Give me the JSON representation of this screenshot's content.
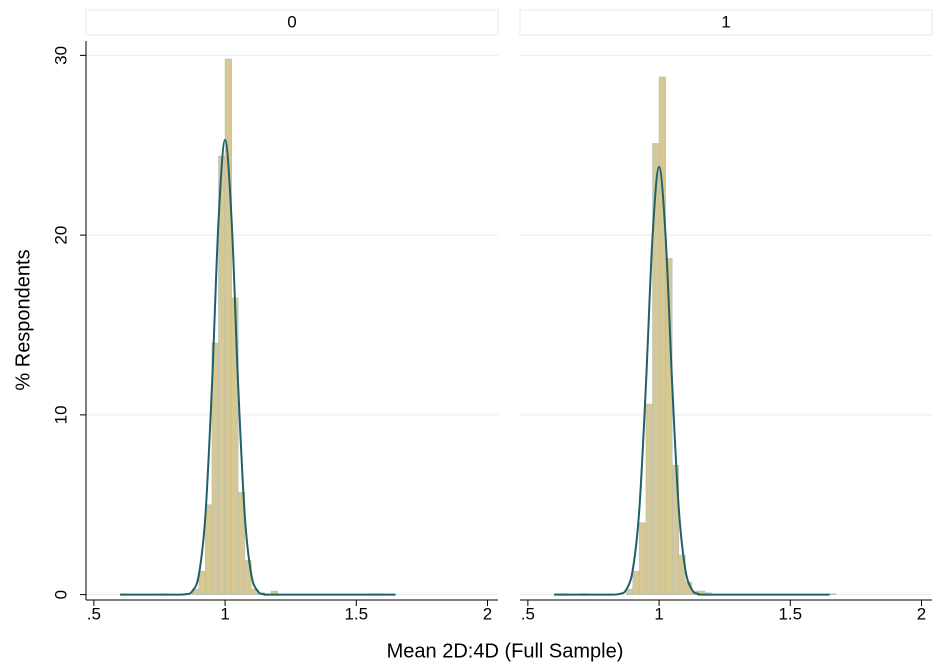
{
  "chart_data": [
    {
      "type": "histogram",
      "title": "0",
      "ylabel": "% Respondents",
      "xlabel": "Mean 2D:4D (Full Sample)",
      "bins": [
        0.6,
        0.625,
        0.65,
        0.675,
        0.7,
        0.725,
        0.75,
        0.775,
        0.8,
        0.825,
        0.85,
        0.875,
        0.9,
        0.925,
        0.95,
        0.975,
        1,
        1.025,
        1.05,
        1.075,
        1.1,
        1.125,
        1.15,
        1.175,
        1.2,
        1.225,
        1.25,
        1.275,
        1.3,
        1.325,
        1.35,
        1.375,
        1.4,
        1.425,
        1.45,
        1.475,
        1.5,
        1.525,
        1.55,
        1.575,
        1.6,
        1.625,
        1.65,
        1.675
      ],
      "values": [
        0.05,
        0,
        0,
        0,
        0,
        0,
        0.05,
        0,
        0,
        0,
        0,
        0.3,
        1.3,
        5.0,
        14.0,
        24.4,
        29.8,
        16.5,
        5.7,
        1.9,
        0.3,
        0.1,
        0,
        0.2,
        0,
        0,
        0,
        0,
        0,
        0,
        0,
        0,
        0,
        0,
        0,
        0,
        0,
        0,
        0.05,
        0.05,
        0,
        0,
        0
      ],
      "color": "#d6c892",
      "curve": {
        "color": "#1f6166",
        "x": [
          0.6,
          0.8,
          0.85,
          0.875,
          0.9,
          0.925,
          0.95,
          0.975,
          1,
          1.025,
          1.05,
          1.075,
          1.1,
          1.125,
          1.15,
          1.2,
          1.65
        ],
        "values": [
          0,
          0,
          0.02,
          0.19,
          1.1,
          4.4,
          11.6,
          20.8,
          25.3,
          20.8,
          11.6,
          4.4,
          1.1,
          0.19,
          0.02,
          0,
          0
        ]
      },
      "xlim": [
        0.47,
        2.04
      ],
      "xticks": [
        {
          "value": 0.5,
          "label": ".5"
        },
        1,
        1.5,
        2
      ],
      "ylim": [
        -0.3,
        30.8
      ],
      "yticks": [
        0,
        10,
        20,
        30
      ],
      "grid": true
    },
    {
      "type": "histogram",
      "title": "1",
      "bins": [
        0.6,
        0.625,
        0.65,
        0.675,
        0.7,
        0.725,
        0.75,
        0.775,
        0.8,
        0.825,
        0.85,
        0.875,
        0.9,
        0.925,
        0.95,
        0.975,
        1,
        1.025,
        1.05,
        1.075,
        1.1,
        1.125,
        1.15,
        1.175,
        1.2,
        1.225,
        1.25,
        1.275,
        1.3,
        1.325,
        1.35,
        1.375,
        1.4,
        1.425,
        1.45,
        1.475,
        1.5,
        1.525,
        1.55,
        1.575,
        1.6,
        1.625,
        1.65,
        1.675
      ],
      "values": [
        0.05,
        0.05,
        0,
        0,
        0.05,
        0,
        0,
        0,
        0,
        0,
        0,
        0.3,
        1.3,
        4.0,
        10.6,
        25.1,
        28.8,
        18.7,
        7.2,
        2.2,
        0.7,
        0.2,
        0.2,
        0.1,
        0,
        0,
        0,
        0,
        0,
        0,
        0,
        0,
        0,
        0,
        0,
        0,
        0,
        0,
        0,
        0,
        0,
        0,
        0.05
      ],
      "color": "#d6c892",
      "curve": {
        "color": "#1f6166",
        "x": [
          0.6,
          0.8,
          0.85,
          0.875,
          0.9,
          0.925,
          0.95,
          0.975,
          1,
          1.025,
          1.05,
          1.075,
          1.1,
          1.125,
          1.15,
          1.2,
          1.65
        ],
        "values": [
          0,
          0,
          0.04,
          0.28,
          1.4,
          4.8,
          11.7,
          19.9,
          23.8,
          19.9,
          11.7,
          4.8,
          1.4,
          0.28,
          0.04,
          0,
          0
        ]
      },
      "xlim": [
        0.47,
        2.04
      ],
      "xticks": [
        {
          "value": 0.5,
          "label": ".5"
        },
        1,
        1.5,
        2
      ]
    }
  ]
}
